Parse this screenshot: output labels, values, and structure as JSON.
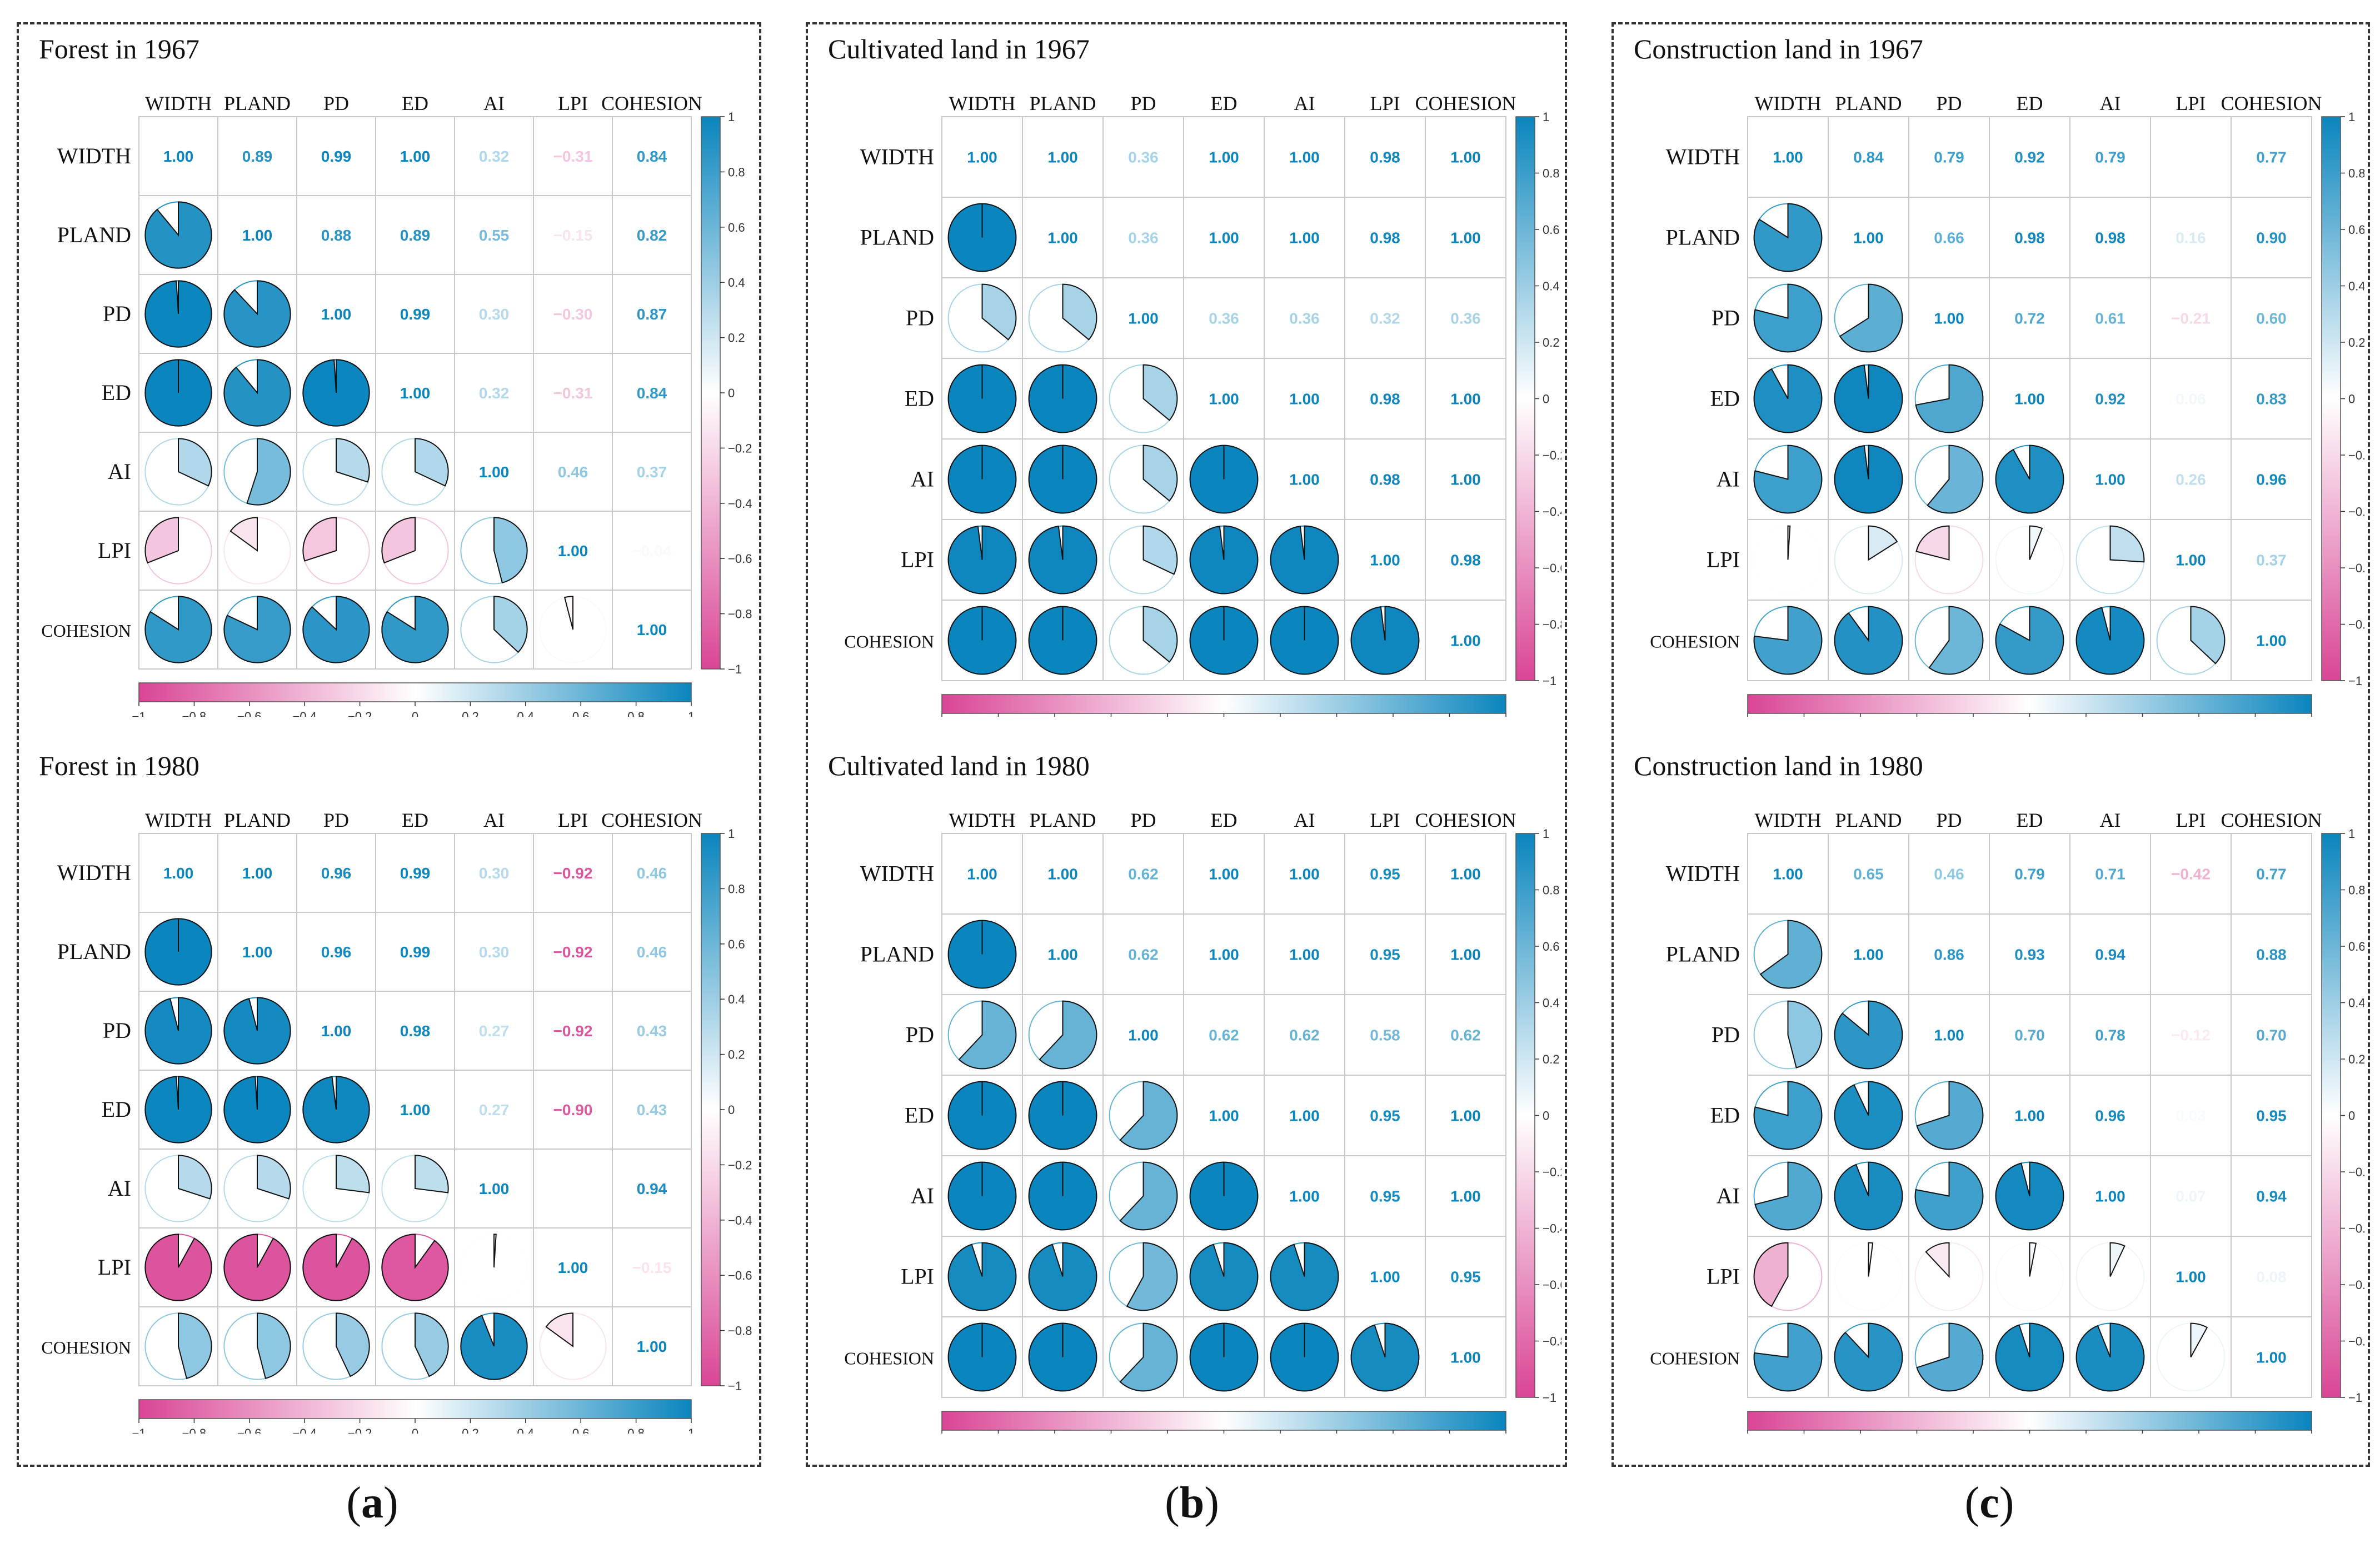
{
  "panels": [
    {
      "label_open": "(",
      "label_letter": "a",
      "label_close": ")"
    },
    {
      "label_open": "(",
      "label_letter": "b",
      "label_close": ")"
    },
    {
      "label_open": "(",
      "label_letter": "c",
      "label_close": ")"
    }
  ],
  "colors": {
    "positive": "#0a85bd",
    "negative": "#d94595",
    "grid": "#c8c8c8",
    "neutral": "#ffffff"
  },
  "colorbar_ticks": [
    "-1",
    "-0.8",
    "-0.6",
    "-0.4",
    "-0.2",
    "0",
    "0.2",
    "0.4",
    "0.6",
    "0.8",
    "1"
  ],
  "chart_data": [
    {
      "type": "heatmap",
      "title": "Forest in 1967",
      "variables": [
        "WIDTH",
        "PLAND",
        "PD",
        "ED",
        "AI",
        "LPI",
        "COHESION"
      ],
      "matrix": [
        [
          1,
          0.89,
          0.99,
          1,
          0.32,
          -0.31,
          0.84
        ],
        [
          0.89,
          1,
          0.88,
          0.89,
          0.55,
          -0.15,
          0.82
        ],
        [
          0.99,
          0.88,
          1,
          0.99,
          0.3,
          -0.3,
          0.87
        ],
        [
          1,
          0.89,
          0.99,
          1,
          0.32,
          -0.31,
          0.84
        ],
        [
          0.32,
          0.55,
          0.3,
          0.32,
          1,
          0.46,
          0.37
        ],
        [
          -0.31,
          -0.15,
          -0.3,
          -0.31,
          0.46,
          1,
          -0.04
        ],
        [
          0.84,
          0.82,
          0.87,
          0.84,
          0.37,
          -0.04,
          1
        ]
      ],
      "upper_labels": [
        [
          "1.00",
          "0.89",
          "0.99",
          "1.00",
          "0.32",
          "−0.31",
          "0.84"
        ],
        [
          "",
          "1.00",
          "0.88",
          "0.89",
          "0.55",
          "−0.15",
          "0.82"
        ],
        [
          "",
          "",
          "1.00",
          "0.99",
          "0.30",
          "−0.30",
          "0.87"
        ],
        [
          "",
          "",
          "",
          "1.00",
          "0.32",
          "−0.31",
          "0.84"
        ],
        [
          "",
          "",
          "",
          "",
          "1.00",
          "0.46",
          "0.37"
        ],
        [
          "",
          "",
          "",
          "",
          "",
          "1.00",
          "−0.04"
        ],
        [
          "",
          "",
          "",
          "",
          "",
          "",
          "1.00"
        ]
      ],
      "color_range": [
        -1,
        1
      ]
    },
    {
      "type": "heatmap",
      "title": "Cultivated land in 1967",
      "variables": [
        "WIDTH",
        "PLAND",
        "PD",
        "ED",
        "AI",
        "LPI",
        "COHESION"
      ],
      "matrix": [
        [
          1,
          1,
          0.36,
          1,
          1,
          0.98,
          1
        ],
        [
          1,
          1,
          0.36,
          1,
          1,
          0.98,
          1
        ],
        [
          0.36,
          0.36,
          1,
          0.36,
          0.36,
          0.32,
          0.36
        ],
        [
          1,
          1,
          0.36,
          1,
          1,
          0.98,
          1
        ],
        [
          1,
          1,
          0.36,
          1,
          1,
          0.98,
          1
        ],
        [
          0.98,
          0.98,
          0.32,
          0.98,
          0.98,
          1,
          0.98
        ],
        [
          1,
          1,
          0.36,
          1,
          1,
          0.98,
          1
        ]
      ],
      "upper_labels": [
        [
          "1.00",
          "1.00",
          "0.36",
          "1.00",
          "1.00",
          "0.98",
          "1.00"
        ],
        [
          "",
          "1.00",
          "0.36",
          "1.00",
          "1.00",
          "0.98",
          "1.00"
        ],
        [
          "",
          "",
          "1.00",
          "0.36",
          "0.36",
          "0.32",
          "0.36"
        ],
        [
          "",
          "",
          "",
          "1.00",
          "1.00",
          "0.98",
          "1.00"
        ],
        [
          "",
          "",
          "",
          "",
          "1.00",
          "0.98",
          "1.00"
        ],
        [
          "",
          "",
          "",
          "",
          "",
          "1.00",
          "0.98"
        ],
        [
          "",
          "",
          "",
          "",
          "",
          "",
          "1.00"
        ]
      ],
      "color_range": [
        -1,
        1
      ]
    },
    {
      "type": "heatmap",
      "title": "Construction land in 1967",
      "variables": [
        "WIDTH",
        "PLAND",
        "PD",
        "ED",
        "AI",
        "LPI",
        "COHESION"
      ],
      "matrix": [
        [
          1,
          0.84,
          0.79,
          0.92,
          0.79,
          0.01,
          0.77
        ],
        [
          0.84,
          1,
          0.66,
          0.98,
          0.98,
          0.16,
          0.9
        ],
        [
          0.79,
          0.66,
          1,
          0.72,
          0.61,
          -0.21,
          0.6
        ],
        [
          0.92,
          0.98,
          0.72,
          1,
          0.92,
          0.06,
          0.83
        ],
        [
          0.79,
          0.98,
          0.61,
          0.92,
          1,
          0.26,
          0.96
        ],
        [
          0.01,
          0.16,
          -0.21,
          0.06,
          0.26,
          1,
          0.37
        ],
        [
          0.77,
          0.9,
          0.6,
          0.83,
          0.96,
          0.37,
          1
        ]
      ],
      "upper_labels": [
        [
          "1.00",
          "0.84",
          "0.79",
          "0.92",
          "0.79",
          "",
          "0.77"
        ],
        [
          "",
          "1.00",
          "0.66",
          "0.98",
          "0.98",
          "0.16",
          "0.90"
        ],
        [
          "",
          "",
          "1.00",
          "0.72",
          "0.61",
          "−0.21",
          "0.60"
        ],
        [
          "",
          "",
          "",
          "1.00",
          "0.92",
          "0.06",
          "0.83"
        ],
        [
          "",
          "",
          "",
          "",
          "1.00",
          "0.26",
          "0.96"
        ],
        [
          "",
          "",
          "",
          "",
          "",
          "1.00",
          "0.37"
        ],
        [
          "",
          "",
          "",
          "",
          "",
          "",
          "1.00"
        ]
      ],
      "color_range": [
        -1,
        1
      ]
    },
    {
      "type": "heatmap",
      "title": "Forest in 1980",
      "variables": [
        "WIDTH",
        "PLAND",
        "PD",
        "ED",
        "AI",
        "LPI",
        "COHESION"
      ],
      "matrix": [
        [
          1,
          1,
          0.96,
          0.99,
          0.3,
          -0.92,
          0.46
        ],
        [
          1,
          1,
          0.96,
          0.99,
          0.3,
          -0.92,
          0.46
        ],
        [
          0.96,
          0.96,
          1,
          0.98,
          0.27,
          -0.92,
          0.43
        ],
        [
          0.99,
          0.99,
          0.98,
          1,
          0.27,
          -0.9,
          0.43
        ],
        [
          0.3,
          0.3,
          0.27,
          0.27,
          1,
          0.01,
          0.94
        ],
        [
          -0.92,
          -0.92,
          -0.92,
          -0.9,
          0.01,
          1,
          -0.15
        ],
        [
          0.46,
          0.46,
          0.43,
          0.43,
          0.94,
          -0.15,
          1
        ]
      ],
      "upper_labels": [
        [
          "1.00",
          "1.00",
          "0.96",
          "0.99",
          "0.30",
          "−0.92",
          "0.46"
        ],
        [
          "",
          "1.00",
          "0.96",
          "0.99",
          "0.30",
          "−0.92",
          "0.46"
        ],
        [
          "",
          "",
          "1.00",
          "0.98",
          "0.27",
          "−0.92",
          "0.43"
        ],
        [
          "",
          "",
          "",
          "1.00",
          "0.27",
          "−0.90",
          "0.43"
        ],
        [
          "",
          "",
          "",
          "",
          "1.00",
          "",
          "0.94"
        ],
        [
          "",
          "",
          "",
          "",
          "",
          "1.00",
          "−0.15"
        ],
        [
          "",
          "",
          "",
          "",
          "",
          "",
          "1.00"
        ]
      ],
      "color_range": [
        -1,
        1
      ]
    },
    {
      "type": "heatmap",
      "title": "Cultivated land in 1980",
      "variables": [
        "WIDTH",
        "PLAND",
        "PD",
        "ED",
        "AI",
        "LPI",
        "COHESION"
      ],
      "matrix": [
        [
          1,
          1,
          0.62,
          1,
          1,
          0.95,
          1
        ],
        [
          1,
          1,
          0.62,
          1,
          1,
          0.95,
          1
        ],
        [
          0.62,
          0.62,
          1,
          0.62,
          0.62,
          0.58,
          0.62
        ],
        [
          1,
          1,
          0.62,
          1,
          1,
          0.95,
          1
        ],
        [
          1,
          1,
          0.62,
          1,
          1,
          0.95,
          1
        ],
        [
          0.95,
          0.95,
          0.58,
          0.95,
          0.95,
          1,
          0.95
        ],
        [
          1,
          1,
          0.62,
          1,
          1,
          0.95,
          1
        ]
      ],
      "upper_labels": [
        [
          "1.00",
          "1.00",
          "0.62",
          "1.00",
          "1.00",
          "0.95",
          "1.00"
        ],
        [
          "",
          "1.00",
          "0.62",
          "1.00",
          "1.00",
          "0.95",
          "1.00"
        ],
        [
          "",
          "",
          "1.00",
          "0.62",
          "0.62",
          "0.58",
          "0.62"
        ],
        [
          "",
          "",
          "",
          "1.00",
          "1.00",
          "0.95",
          "1.00"
        ],
        [
          "",
          "",
          "",
          "",
          "1.00",
          "0.95",
          "1.00"
        ],
        [
          "",
          "",
          "",
          "",
          "",
          "1.00",
          "0.95"
        ],
        [
          "",
          "",
          "",
          "",
          "",
          "",
          "1.00"
        ]
      ],
      "color_range": [
        -1,
        1
      ]
    },
    {
      "type": "heatmap",
      "title": "Construction land in 1980",
      "variables": [
        "WIDTH",
        "PLAND",
        "PD",
        "ED",
        "AI",
        "LPI",
        "COHESION"
      ],
      "matrix": [
        [
          1,
          0.65,
          0.46,
          0.79,
          0.71,
          -0.42,
          0.77
        ],
        [
          0.65,
          1,
          0.86,
          0.93,
          0.94,
          0.02,
          0.88
        ],
        [
          0.46,
          0.86,
          1,
          0.7,
          0.78,
          -0.12,
          0.7
        ],
        [
          0.79,
          0.93,
          0.7,
          1,
          0.96,
          0.03,
          0.95
        ],
        [
          0.71,
          0.94,
          0.78,
          0.96,
          1,
          0.07,
          0.94
        ],
        [
          -0.42,
          0.02,
          -0.12,
          0.03,
          0.07,
          1,
          0.08
        ],
        [
          0.77,
          0.88,
          0.7,
          0.95,
          0.94,
          0.08,
          1
        ]
      ],
      "upper_labels": [
        [
          "1.00",
          "0.65",
          "0.46",
          "0.79",
          "0.71",
          "−0.42",
          "0.77"
        ],
        [
          "",
          "1.00",
          "0.86",
          "0.93",
          "0.94",
          "",
          "0.88"
        ],
        [
          "",
          "",
          "1.00",
          "0.70",
          "0.78",
          "−0.12",
          "0.70"
        ],
        [
          "",
          "",
          "",
          "1.00",
          "0.96",
          "0.03",
          "0.95"
        ],
        [
          "",
          "",
          "",
          "",
          "1.00",
          "0.07",
          "0.94"
        ],
        [
          "",
          "",
          "",
          "",
          "",
          "1.00",
          "0.08"
        ],
        [
          "",
          "",
          "",
          "",
          "",
          "",
          "1.00"
        ]
      ],
      "color_range": [
        -1,
        1
      ]
    }
  ]
}
